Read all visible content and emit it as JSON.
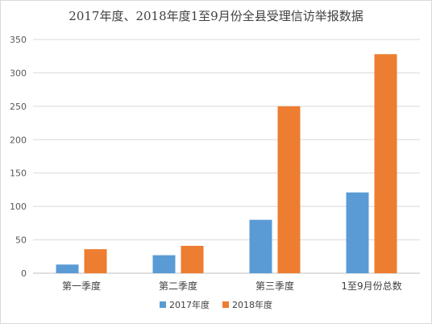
{
  "chart_data": {
    "type": "bar",
    "title": "2017年度、2018年度1至9月份全县受理信访举报数据",
    "xlabel": "",
    "ylabel": "",
    "categories": [
      "第一季度",
      "第二季度",
      "第三季度",
      "1至9月份总数"
    ],
    "series": [
      {
        "name": "2017年度",
        "values": [
          13,
          27,
          80,
          121
        ],
        "color": "#5B9BD5"
      },
      {
        "name": "2018年度",
        "values": [
          36,
          41,
          250,
          328
        ],
        "color": "#ED7D31"
      }
    ],
    "ylim": [
      0,
      350
    ],
    "yticks": [
      0,
      50,
      100,
      150,
      200,
      250,
      300,
      350
    ],
    "grid": true,
    "gridColor": "#d9d9d9",
    "legend": "bottom"
  }
}
